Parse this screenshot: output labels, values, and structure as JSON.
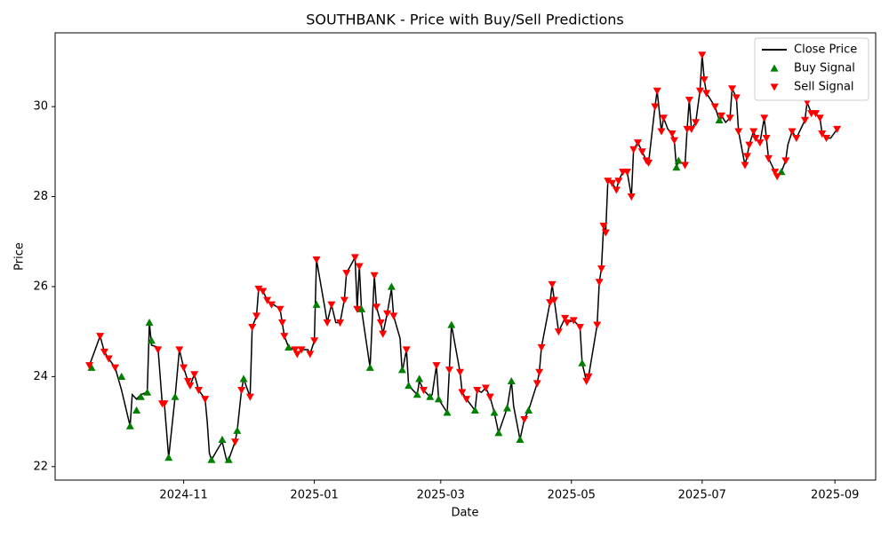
{
  "chart_data": {
    "type": "line",
    "title": "SOUTHBANK - Price with Buy/Sell Predictions",
    "xlabel": "Date",
    "ylabel": "Price",
    "legend": "upper right",
    "grid": false,
    "xlim": [
      "2024-09-02",
      "2025-09-20"
    ],
    "xticks": [
      {
        "value": "2024-11-01",
        "label": "2024-11"
      },
      {
        "value": "2025-01-01",
        "label": "2025-01"
      },
      {
        "value": "2025-03-01",
        "label": "2025-03"
      },
      {
        "value": "2025-05-01",
        "label": "2025-05"
      },
      {
        "value": "2025-07-01",
        "label": "2025-07"
      },
      {
        "value": "2025-09-01",
        "label": "2025-09"
      }
    ],
    "ylim": [
      21.7,
      31.64
    ],
    "yticks": [
      22,
      24,
      26,
      28,
      30
    ],
    "series": [
      {
        "name": "Close Price",
        "color": "#000000",
        "marker": "line",
        "x": [
          "2024-09-18",
          "2024-09-23",
          "2024-09-25",
          "2024-09-27",
          "2024-09-30",
          "2024-10-03",
          "2024-10-07",
          "2024-10-08",
          "2024-10-10",
          "2024-10-12",
          "2024-10-15",
          "2024-10-16",
          "2024-10-17",
          "2024-10-20",
          "2024-10-22",
          "2024-10-23",
          "2024-10-25",
          "2024-10-28",
          "2024-10-30",
          "2024-11-01",
          "2024-11-03",
          "2024-11-04",
          "2024-11-06",
          "2024-11-08",
          "2024-11-11",
          "2024-11-12",
          "2024-11-13",
          "2024-11-14",
          "2024-11-17",
          "2024-11-19",
          "2024-11-21",
          "2024-11-22",
          "2024-11-25",
          "2024-11-26",
          "2024-11-28",
          "2024-11-29",
          "2024-12-02",
          "2024-12-03",
          "2024-12-05",
          "2024-12-06",
          "2024-12-08",
          "2024-12-10",
          "2024-12-12",
          "2024-12-13",
          "2024-12-16",
          "2024-12-17",
          "2024-12-18",
          "2024-12-20",
          "2024-12-23",
          "2024-12-24",
          "2024-12-26",
          "2024-12-29",
          "2024-12-30",
          "2025-01-01",
          "2025-01-02",
          "2025-01-06",
          "2025-01-07",
          "2025-01-09",
          "2025-01-11",
          "2025-01-13",
          "2025-01-15",
          "2025-01-16",
          "2025-01-20",
          "2025-01-21",
          "2025-01-22",
          "2025-01-23",
          "2025-01-27",
          "2025-01-29",
          "2025-01-30",
          "2025-02-01",
          "2025-02-02",
          "2025-02-04",
          "2025-02-06",
          "2025-02-07",
          "2025-02-10",
          "2025-02-11",
          "2025-02-13",
          "2025-02-14",
          "2025-02-16",
          "2025-02-18",
          "2025-02-19",
          "2025-02-21",
          "2025-02-24",
          "2025-02-25",
          "2025-02-27",
          "2025-02-28",
          "2025-03-02",
          "2025-03-04",
          "2025-03-05",
          "2025-03-06",
          "2025-03-10",
          "2025-03-11",
          "2025-03-13",
          "2025-03-17",
          "2025-03-18",
          "2025-03-20",
          "2025-03-22",
          "2025-03-24",
          "2025-03-26",
          "2025-03-28",
          "2025-04-01",
          "2025-04-03",
          "2025-04-04",
          "2025-04-07",
          "2025-04-09",
          "2025-04-11",
          "2025-04-15",
          "2025-04-16",
          "2025-04-17",
          "2025-04-21",
          "2025-04-22",
          "2025-04-23",
          "2025-04-25",
          "2025-04-28",
          "2025-04-29",
          "2025-05-02",
          "2025-05-05",
          "2025-05-06",
          "2025-05-08",
          "2025-05-09",
          "2025-05-13",
          "2025-05-14",
          "2025-05-15",
          "2025-05-16",
          "2025-05-17",
          "2025-05-18",
          "2025-05-20",
          "2025-05-22",
          "2025-05-23",
          "2025-05-25",
          "2025-05-27",
          "2025-05-29",
          "2025-05-30",
          "2025-06-01",
          "2025-06-03",
          "2025-06-05",
          "2025-06-06",
          "2025-06-09",
          "2025-06-10",
          "2025-06-12",
          "2025-06-13",
          "2025-06-15",
          "2025-06-17",
          "2025-06-18",
          "2025-06-19",
          "2025-06-20",
          "2025-06-23",
          "2025-06-24",
          "2025-06-25",
          "2025-06-26",
          "2025-06-28",
          "2025-06-30",
          "2025-07-01",
          "2025-07-02",
          "2025-07-03",
          "2025-07-07",
          "2025-07-09",
          "2025-07-10",
          "2025-07-12",
          "2025-07-14",
          "2025-07-15",
          "2025-07-17",
          "2025-07-18",
          "2025-07-21",
          "2025-07-22",
          "2025-07-23",
          "2025-07-25",
          "2025-07-26",
          "2025-07-28",
          "2025-07-30",
          "2025-07-31",
          "2025-08-01",
          "2025-08-04",
          "2025-08-05",
          "2025-08-07",
          "2025-08-09",
          "2025-08-10",
          "2025-08-12",
          "2025-08-14",
          "2025-08-18",
          "2025-08-19",
          "2025-08-21",
          "2025-08-23",
          "2025-08-25",
          "2025-08-26",
          "2025-08-28",
          "2025-08-30",
          "2025-09-02"
        ],
        "values": [
          24.25,
          24.9,
          24.55,
          24.4,
          24.2,
          23.7,
          22.9,
          23.6,
          23.5,
          23.6,
          23.65,
          25.2,
          24.7,
          24.65,
          23.4,
          23.4,
          22.2,
          23.55,
          24.6,
          24.2,
          23.9,
          23.8,
          24.05,
          23.7,
          23.5,
          23.0,
          22.3,
          22.15,
          22.4,
          22.55,
          22.15,
          22.15,
          22.55,
          22.8,
          23.7,
          23.95,
          23.55,
          25.1,
          25.35,
          25.95,
          25.9,
          25.7,
          25.6,
          25.6,
          25.5,
          25.2,
          24.9,
          24.65,
          24.6,
          24.5,
          24.6,
          24.6,
          24.5,
          24.8,
          26.6,
          25.5,
          25.2,
          25.6,
          25.2,
          25.2,
          25.7,
          26.3,
          26.65,
          25.5,
          26.45,
          25.5,
          24.2,
          26.25,
          25.55,
          25.2,
          24.95,
          25.4,
          25.95,
          25.35,
          24.85,
          24.1,
          24.6,
          23.8,
          23.7,
          23.6,
          23.9,
          23.7,
          23.55,
          23.6,
          24.25,
          23.5,
          23.35,
          23.2,
          24.15,
          25.15,
          24.1,
          23.65,
          23.5,
          23.25,
          23.7,
          23.65,
          23.75,
          23.55,
          23.2,
          22.75,
          23.3,
          23.9,
          23.35,
          22.6,
          23.05,
          23.25,
          23.85,
          24.1,
          24.65,
          25.65,
          26.05,
          25.7,
          25.0,
          25.3,
          25.2,
          25.25,
          25.1,
          24.3,
          23.9,
          24.0,
          25.15,
          26.1,
          26.4,
          27.35,
          27.2,
          28.35,
          28.3,
          28.15,
          28.35,
          28.55,
          28.55,
          28.0,
          29.05,
          29.2,
          29.0,
          28.8,
          28.75,
          30.0,
          30.35,
          29.45,
          29.75,
          29.5,
          29.4,
          29.25,
          28.65,
          28.8,
          28.7,
          29.5,
          30.15,
          29.5,
          29.65,
          30.35,
          31.15,
          30.6,
          30.3,
          30.0,
          29.7,
          29.8,
          29.65,
          29.75,
          30.4,
          30.2,
          29.45,
          28.7,
          28.9,
          29.15,
          29.45,
          29.3,
          29.2,
          29.75,
          29.3,
          28.85,
          28.55,
          28.45,
          28.55,
          28.8,
          29.15,
          29.45,
          29.3,
          29.7,
          30.1,
          29.85,
          29.85,
          29.75,
          29.4,
          29.3,
          29.3,
          29.5
        ]
      },
      {
        "name": "Buy Signal",
        "color": "#008000",
        "marker": "^",
        "x": [
          "2024-09-19",
          "2024-10-03",
          "2024-10-07",
          "2024-10-10",
          "2024-10-12",
          "2024-10-15",
          "2024-10-16",
          "2024-10-17",
          "2024-10-25",
          "2024-10-28",
          "2024-11-14",
          "2024-11-19",
          "2024-11-22",
          "2024-11-26",
          "2024-11-29",
          "2024-12-20",
          "2025-01-02",
          "2025-01-23",
          "2025-01-27",
          "2025-02-06",
          "2025-02-11",
          "2025-02-14",
          "2025-02-18",
          "2025-02-19",
          "2025-02-24",
          "2025-02-28",
          "2025-03-04",
          "2025-03-06",
          "2025-03-17",
          "2025-03-26",
          "2025-03-28",
          "2025-04-01",
          "2025-04-03",
          "2025-04-07",
          "2025-04-11",
          "2025-05-06",
          "2025-06-19",
          "2025-06-20",
          "2025-07-09",
          "2025-08-07"
        ],
        "values": [
          24.2,
          24.0,
          22.9,
          23.25,
          23.55,
          23.65,
          25.2,
          24.8,
          22.2,
          23.55,
          22.15,
          22.6,
          22.15,
          22.8,
          23.95,
          24.65,
          25.6,
          25.5,
          24.2,
          26.0,
          24.15,
          23.8,
          23.6,
          23.95,
          23.55,
          23.5,
          23.2,
          25.15,
          23.25,
          23.2,
          22.75,
          23.3,
          23.9,
          22.6,
          23.25,
          24.3,
          28.65,
          28.8,
          29.7,
          28.55
        ]
      },
      {
        "name": "Sell Signal",
        "color": "#ff0000",
        "marker": "v",
        "x": [
          "2024-09-18",
          "2024-09-23",
          "2024-09-25",
          "2024-09-27",
          "2024-09-30",
          "2024-10-20",
          "2024-10-22",
          "2024-10-23",
          "2024-10-30",
          "2024-11-01",
          "2024-11-03",
          "2024-11-04",
          "2024-11-06",
          "2024-11-08",
          "2024-11-11",
          "2024-11-25",
          "2024-11-28",
          "2024-12-02",
          "2024-12-03",
          "2024-12-05",
          "2024-12-06",
          "2024-12-08",
          "2024-12-10",
          "2024-12-12",
          "2024-12-16",
          "2024-12-17",
          "2024-12-18",
          "2024-12-23",
          "2024-12-24",
          "2024-12-26",
          "2024-12-30",
          "2025-01-01",
          "2025-01-02",
          "2025-01-07",
          "2025-01-09",
          "2025-01-13",
          "2025-01-15",
          "2025-01-16",
          "2025-01-20",
          "2025-01-21",
          "2025-01-22",
          "2025-01-29",
          "2025-01-30",
          "2025-02-01",
          "2025-02-02",
          "2025-02-04",
          "2025-02-07",
          "2025-02-13",
          "2025-02-21",
          "2025-02-27",
          "2025-03-05",
          "2025-03-10",
          "2025-03-11",
          "2025-03-13",
          "2025-03-18",
          "2025-03-22",
          "2025-03-24",
          "2025-04-09",
          "2025-04-15",
          "2025-04-16",
          "2025-04-17",
          "2025-04-21",
          "2025-04-22",
          "2025-04-23",
          "2025-04-25",
          "2025-04-28",
          "2025-04-29",
          "2025-05-02",
          "2025-05-05",
          "2025-05-08",
          "2025-05-09",
          "2025-05-13",
          "2025-05-14",
          "2025-05-15",
          "2025-05-16",
          "2025-05-17",
          "2025-05-18",
          "2025-05-20",
          "2025-05-22",
          "2025-05-23",
          "2025-05-25",
          "2025-05-27",
          "2025-05-29",
          "2025-05-30",
          "2025-06-01",
          "2025-06-03",
          "2025-06-05",
          "2025-06-06",
          "2025-06-09",
          "2025-06-10",
          "2025-06-12",
          "2025-06-13",
          "2025-06-17",
          "2025-06-18",
          "2025-06-23",
          "2025-06-24",
          "2025-06-25",
          "2025-06-26",
          "2025-06-28",
          "2025-06-30",
          "2025-07-01",
          "2025-07-02",
          "2025-07-03",
          "2025-07-07",
          "2025-07-10",
          "2025-07-14",
          "2025-07-15",
          "2025-07-17",
          "2025-07-18",
          "2025-07-21",
          "2025-07-22",
          "2025-07-23",
          "2025-07-25",
          "2025-07-26",
          "2025-07-28",
          "2025-07-30",
          "2025-07-31",
          "2025-08-01",
          "2025-08-04",
          "2025-08-05",
          "2025-08-09",
          "2025-08-12",
          "2025-08-14",
          "2025-08-18",
          "2025-08-19",
          "2025-08-21",
          "2025-08-23",
          "2025-08-25",
          "2025-08-26",
          "2025-08-28",
          "2025-09-02"
        ],
        "values": [
          24.25,
          24.9,
          24.55,
          24.4,
          24.2,
          24.6,
          23.4,
          23.4,
          24.6,
          24.2,
          23.9,
          23.8,
          24.05,
          23.7,
          23.5,
          22.55,
          23.7,
          23.55,
          25.1,
          25.35,
          25.95,
          25.9,
          25.7,
          25.6,
          25.5,
          25.2,
          24.9,
          24.6,
          24.5,
          24.6,
          24.5,
          24.8,
          26.6,
          25.2,
          25.6,
          25.2,
          25.7,
          26.3,
          26.65,
          25.5,
          26.45,
          26.25,
          25.55,
          25.2,
          24.95,
          25.4,
          25.35,
          24.6,
          23.7,
          24.25,
          24.15,
          24.1,
          23.65,
          23.5,
          23.7,
          23.75,
          23.55,
          23.05,
          23.85,
          24.1,
          24.65,
          25.65,
          26.05,
          25.7,
          25.0,
          25.3,
          25.2,
          25.25,
          25.1,
          23.9,
          24.0,
          25.15,
          26.1,
          26.4,
          27.35,
          27.2,
          28.35,
          28.3,
          28.15,
          28.35,
          28.55,
          28.55,
          28.0,
          29.05,
          29.2,
          29.0,
          28.8,
          28.75,
          30.0,
          30.35,
          29.45,
          29.75,
          29.4,
          29.25,
          28.7,
          29.5,
          30.15,
          29.5,
          29.65,
          30.35,
          31.15,
          30.6,
          30.3,
          30.0,
          29.8,
          29.75,
          30.4,
          30.2,
          29.45,
          28.7,
          28.9,
          29.15,
          29.45,
          29.3,
          29.2,
          29.75,
          29.3,
          28.85,
          28.55,
          28.45,
          28.8,
          29.45,
          29.3,
          29.7,
          30.1,
          29.85,
          29.85,
          29.75,
          29.4,
          29.3,
          29.5
        ]
      }
    ]
  }
}
